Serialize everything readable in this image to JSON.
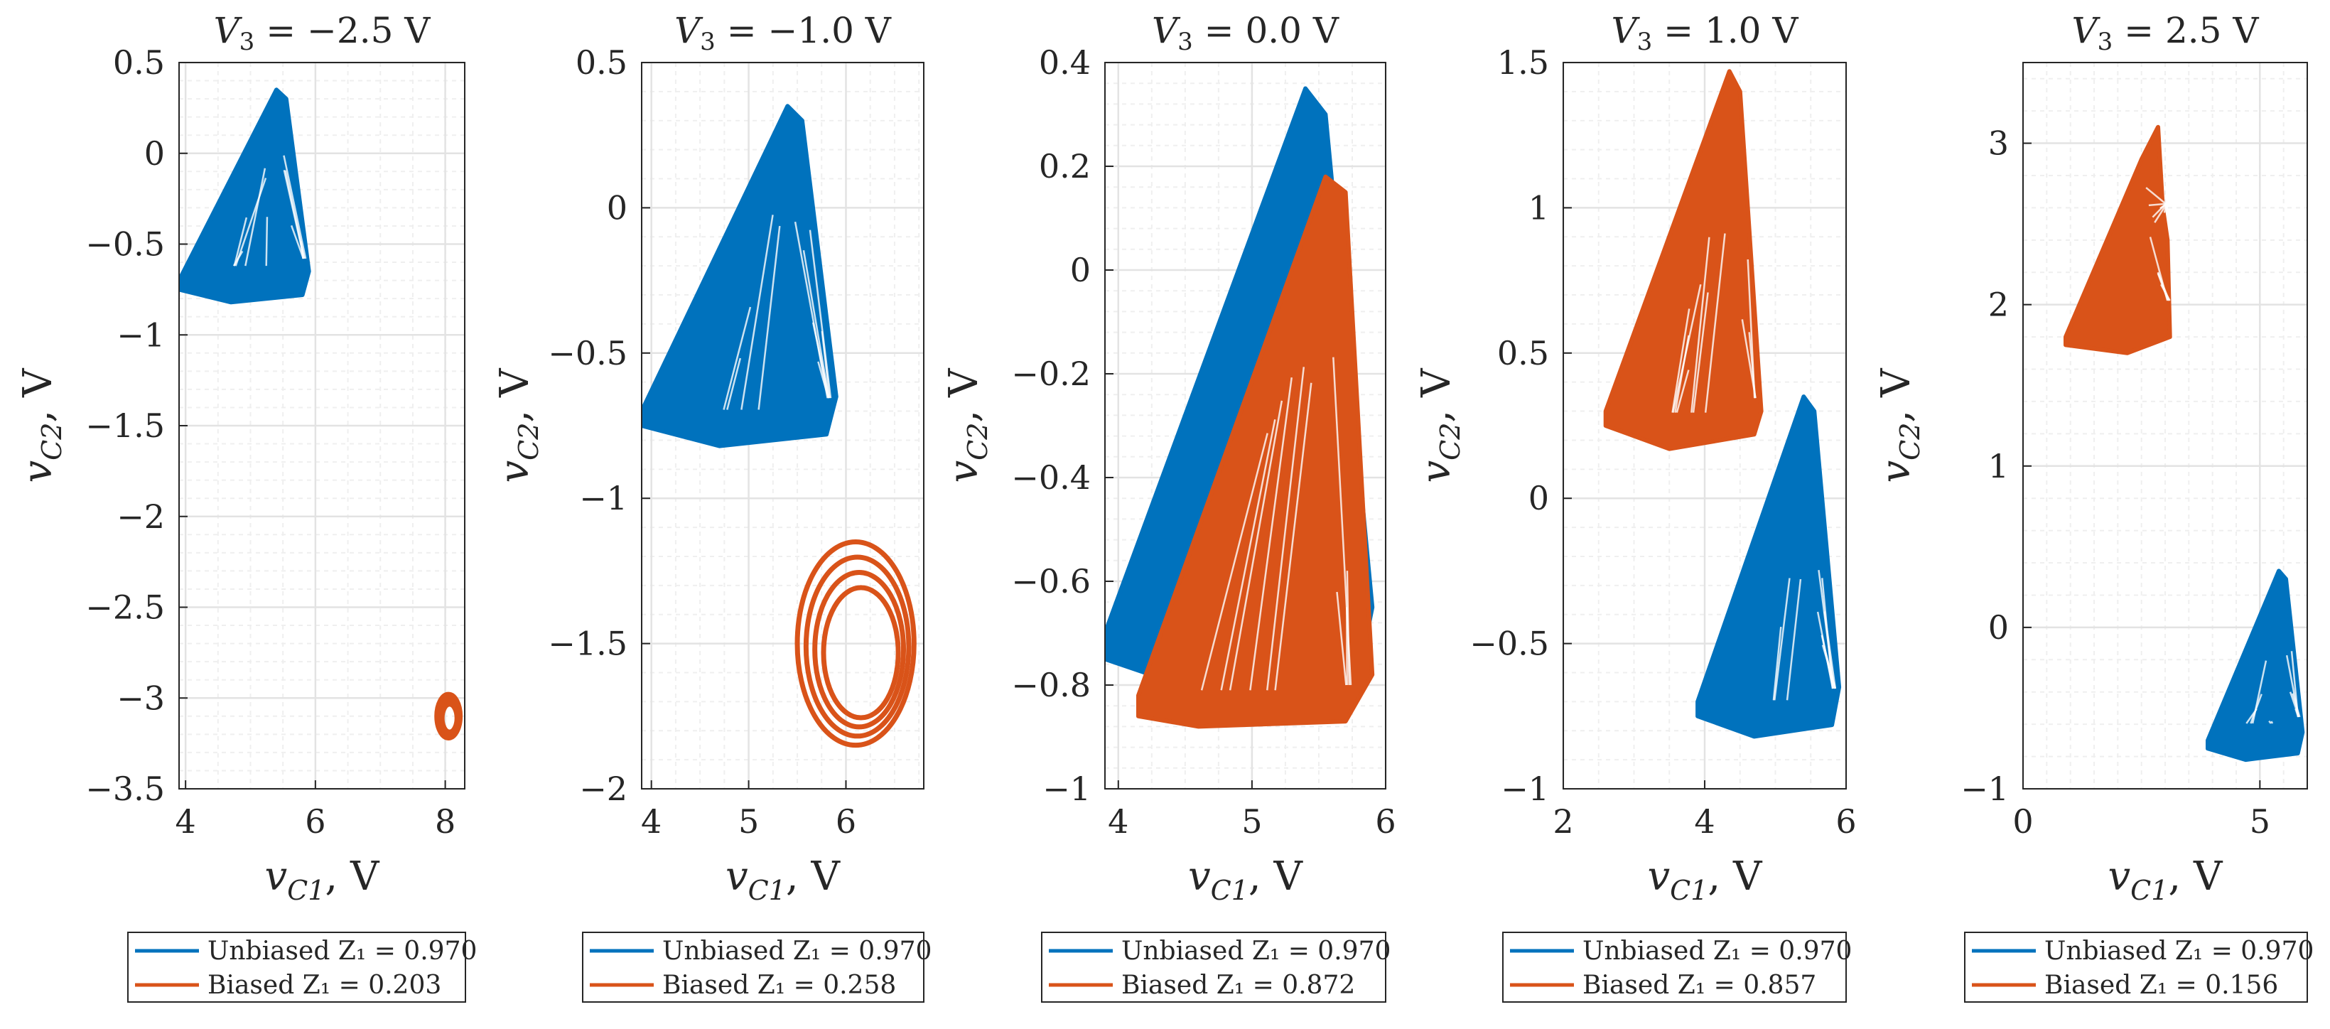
{
  "colors": {
    "unbiased": "#0072BD",
    "biased": "#D95319",
    "grid": "#e3e3e3",
    "axis": "#262626"
  },
  "chart_data": [
    {
      "type": "scatter",
      "title_prefix": "V",
      "title_sub": "3",
      "title_value": " = −2.5 V",
      "xlabel": "v",
      "xlabel_sub": "C1",
      "xlabel_unit": ", V",
      "ylabel": "v",
      "ylabel_sub": "C2",
      "ylabel_unit": ", V",
      "xlim": [
        3.9,
        8.3
      ],
      "ylim": [
        -3.5,
        0.5
      ],
      "xticks": [
        4,
        6,
        8
      ],
      "xtick_labels": [
        "4",
        "6",
        "8"
      ],
      "yticks": [
        -3.5,
        -3,
        -2.5,
        -2,
        -1.5,
        -1,
        -0.5,
        0,
        0.5
      ],
      "ytick_labels": [
        "−3.5",
        "−3",
        "−2.5",
        "−2",
        "−1.5",
        "−1",
        "−0.5",
        "0",
        "0.5"
      ],
      "grid": true,
      "series": [
        {
          "name": "Unbiased Z₁ = 0.970",
          "color": "#0072BD",
          "outline": [
            [
              3.9,
              -0.7
            ],
            [
              5.4,
              0.35
            ],
            [
              5.55,
              0.3
            ],
            [
              5.9,
              -0.65
            ],
            [
              5.8,
              -0.78
            ],
            [
              4.7,
              -0.82
            ],
            [
              3.9,
              -0.75
            ]
          ]
        },
        {
          "name": "Biased Z₁ = 0.203",
          "color": "#D95319",
          "loop": {
            "center": [
              8.05,
              -3.1
            ],
            "rx": 0.18,
            "ry": 0.12
          }
        }
      ]
    },
    {
      "type": "scatter",
      "title_prefix": "V",
      "title_sub": "3",
      "title_value": " = −1.0 V",
      "xlabel": "v",
      "xlabel_sub": "C1",
      "xlabel_unit": ", V",
      "ylabel": "v",
      "ylabel_sub": "C2",
      "ylabel_unit": ", V",
      "xlim": [
        3.9,
        6.8
      ],
      "ylim": [
        -2,
        0.5
      ],
      "xticks": [
        4,
        5,
        6
      ],
      "xtick_labels": [
        "4",
        "5",
        "6"
      ],
      "yticks": [
        -2,
        -1.5,
        -1,
        -0.5,
        0,
        0.5
      ],
      "ytick_labels": [
        "−2",
        "−1.5",
        "−1",
        "−0.5",
        "0",
        "0.5"
      ],
      "grid": true,
      "series": [
        {
          "name": "Unbiased Z₁ = 0.970",
          "color": "#0072BD",
          "outline": [
            [
              3.9,
              -0.7
            ],
            [
              5.4,
              0.35
            ],
            [
              5.55,
              0.3
            ],
            [
              5.9,
              -0.65
            ],
            [
              5.8,
              -0.78
            ],
            [
              4.7,
              -0.82
            ],
            [
              3.9,
              -0.75
            ]
          ]
        },
        {
          "name": "Biased Z₁ = 0.258",
          "color": "#D95319",
          "loop": {
            "center": [
              6.1,
              -1.5
            ],
            "rx": 0.6,
            "ry": 0.35
          }
        }
      ]
    },
    {
      "type": "scatter",
      "title_prefix": "V",
      "title_sub": "3",
      "title_value": " = 0.0 V",
      "xlabel": "v",
      "xlabel_sub": "C1",
      "xlabel_unit": ", V",
      "ylabel": "v",
      "ylabel_sub": "C2",
      "ylabel_unit": ", V",
      "xlim": [
        3.9,
        6
      ],
      "ylim": [
        -1,
        0.4
      ],
      "xticks": [
        4,
        5,
        6
      ],
      "xtick_labels": [
        "4",
        "5",
        "6"
      ],
      "yticks": [
        -1,
        -0.8,
        -0.6,
        -0.4,
        -0.2,
        0,
        0.2,
        0.4
      ],
      "ytick_labels": [
        "−1",
        "−0.8",
        "−0.6",
        "−0.4",
        "−0.2",
        "0",
        "0.2",
        "0.4"
      ],
      "grid": true,
      "series": [
        {
          "name": "Unbiased Z₁ = 0.970",
          "color": "#0072BD",
          "outline": [
            [
              3.9,
              -0.7
            ],
            [
              5.4,
              0.35
            ],
            [
              5.55,
              0.3
            ],
            [
              5.9,
              -0.65
            ],
            [
              5.8,
              -0.78
            ],
            [
              4.7,
              -0.82
            ],
            [
              3.9,
              -0.75
            ]
          ]
        },
        {
          "name": "Biased Z₁ = 0.872",
          "color": "#D95319",
          "outline": [
            [
              4.15,
              -0.82
            ],
            [
              5.55,
              0.18
            ],
            [
              5.7,
              0.15
            ],
            [
              5.9,
              -0.78
            ],
            [
              5.7,
              -0.87
            ],
            [
              4.6,
              -0.88
            ],
            [
              4.15,
              -0.86
            ]
          ]
        }
      ]
    },
    {
      "type": "scatter",
      "title_prefix": "V",
      "title_sub": "3",
      "title_value": " = 1.0 V",
      "xlabel": "v",
      "xlabel_sub": "C1",
      "xlabel_unit": ", V",
      "ylabel": "v",
      "ylabel_sub": "C2",
      "ylabel_unit": ", V",
      "xlim": [
        2,
        6
      ],
      "ylim": [
        -1,
        1.5
      ],
      "xticks": [
        2,
        4,
        6
      ],
      "xtick_labels": [
        "2",
        "4",
        "6"
      ],
      "yticks": [
        -1,
        -0.5,
        0,
        0.5,
        1,
        1.5
      ],
      "ytick_labels": [
        "−1",
        "−0.5",
        "0",
        "0.5",
        "1",
        "1.5"
      ],
      "grid": true,
      "series": [
        {
          "name": "Unbiased Z₁ = 0.970",
          "color": "#0072BD",
          "outline": [
            [
              3.9,
              -0.7
            ],
            [
              5.4,
              0.35
            ],
            [
              5.55,
              0.3
            ],
            [
              5.9,
              -0.65
            ],
            [
              5.8,
              -0.78
            ],
            [
              4.7,
              -0.82
            ],
            [
              3.9,
              -0.75
            ]
          ]
        },
        {
          "name": "Biased Z₁ = 0.857",
          "color": "#D95319",
          "outline": [
            [
              2.6,
              0.3
            ],
            [
              4.35,
              1.47
            ],
            [
              4.5,
              1.4
            ],
            [
              4.8,
              0.3
            ],
            [
              4.7,
              0.22
            ],
            [
              3.5,
              0.17
            ],
            [
              2.6,
              0.25
            ]
          ]
        }
      ]
    },
    {
      "type": "scatter",
      "title_prefix": "V",
      "title_sub": "3",
      "title_value": " = 2.5 V",
      "xlabel": "v",
      "xlabel_sub": "C1",
      "xlabel_unit": ", V",
      "ylabel": "v",
      "ylabel_sub": "C2",
      "ylabel_unit": ", V",
      "xlim": [
        0,
        6
      ],
      "ylim": [
        -1,
        3.5
      ],
      "xticks": [
        0,
        5
      ],
      "xtick_labels": [
        "0",
        "5"
      ],
      "yticks": [
        -1,
        0,
        1,
        2,
        3
      ],
      "ytick_labels": [
        "−1",
        "0",
        "1",
        "2",
        "3"
      ],
      "grid": true,
      "series": [
        {
          "name": "Unbiased Z₁ = 0.970",
          "color": "#0072BD",
          "outline": [
            [
              3.9,
              -0.7
            ],
            [
              5.4,
              0.35
            ],
            [
              5.55,
              0.3
            ],
            [
              5.9,
              -0.65
            ],
            [
              5.8,
              -0.78
            ],
            [
              4.7,
              -0.82
            ],
            [
              3.9,
              -0.75
            ]
          ]
        },
        {
          "name": "Biased Z₁ = 0.156",
          "color": "#D95319",
          "outline": [
            [
              0.9,
              1.8
            ],
            [
              2.5,
              2.9
            ],
            [
              2.85,
              3.1
            ],
            [
              2.95,
              2.6
            ],
            [
              3.05,
              2.4
            ],
            [
              3.1,
              1.8
            ],
            [
              2.2,
              1.7
            ],
            [
              0.9,
              1.75
            ]
          ]
        }
      ]
    }
  ]
}
